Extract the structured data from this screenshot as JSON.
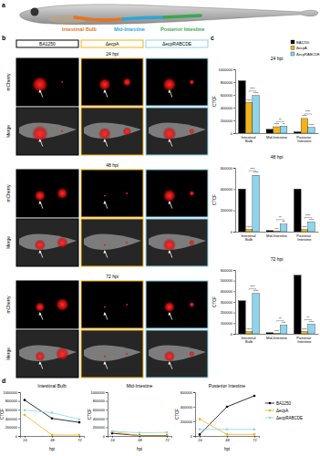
{
  "figure": {
    "panel_labels": [
      "a",
      "b",
      "c",
      "d"
    ],
    "fish": {
      "regions": [
        {
          "label": "Intestinal Bulb",
          "color": "#e8731e"
        },
        {
          "label": "Mid-Intestine",
          "color": "#2aa7d8"
        },
        {
          "label": "Posterior Intestine",
          "color": "#3aa655"
        }
      ]
    },
    "images": {
      "columns": [
        {
          "label": "BA1250",
          "color": "#000000"
        },
        {
          "label": "ΔecpA",
          "color": "#f2b21b"
        },
        {
          "label": "ΔecpRABCDE",
          "color": "#8ed4ea"
        }
      ],
      "rows": [
        "24 hpi",
        "48 hpi",
        "72 hpi"
      ],
      "channels": [
        "mCherry",
        "Merge"
      ]
    }
  },
  "chart_data": [
    {
      "type": "bar",
      "title": "24 hpi",
      "ylabel": "CTCF",
      "categories": [
        "Intestinal Bulb",
        "Mid-Intestine",
        "Posterior Intestine"
      ],
      "series": [
        {
          "name": "BA1250",
          "color": "#000000",
          "values": [
            820000,
            60000,
            20000
          ]
        },
        {
          "name": "ΔecpA",
          "color": "#f2b21b",
          "values": [
            480000,
            100000,
            230000
          ],
          "significance": [
            "****",
            "****",
            "****"
          ]
        },
        {
          "name": "ΔecpRABCDE",
          "color": "#8ed4ea",
          "values": [
            590000,
            110000,
            90000
          ],
          "significance": [
            "****",
            "**",
            "****"
          ]
        }
      ],
      "pair_significance": [
        "****",
        "**",
        "****"
      ],
      "ylim": [
        0,
        1000000
      ],
      "yticks": [
        0,
        200000,
        400000,
        600000,
        800000,
        1000000
      ],
      "legend": "top-right"
    },
    {
      "type": "bar",
      "title": "48 hpi",
      "ylabel": "CTCF",
      "categories": [
        "Intestinal Bulb",
        "Mid-Intestine",
        "Posterior Intestine"
      ],
      "series": [
        {
          "name": "BA1250",
          "color": "#000000",
          "values": [
            400000,
            10000,
            400000
          ]
        },
        {
          "name": "ΔecpA",
          "color": "#f2b21b",
          "values": [
            20000,
            5000,
            20000
          ],
          "significance": [
            "****",
            "***",
            "****"
          ]
        },
        {
          "name": "ΔecpRABCDE",
          "color": "#8ed4ea",
          "values": [
            530000,
            70000,
            90000
          ],
          "significance": [
            "****",
            "**",
            "****"
          ]
        }
      ],
      "pair_significance": [
        "****",
        "**",
        "****"
      ],
      "ylim": [
        0,
        600000
      ],
      "yticks": [
        0,
        200000,
        400000,
        600000
      ]
    },
    {
      "type": "bar",
      "title": "72 hpi",
      "ylabel": "CTCF",
      "categories": [
        "Intestinal Bulb",
        "Mid-Intestine",
        "Posterior Intestine"
      ],
      "series": [
        {
          "name": "BA1250",
          "color": "#000000",
          "values": [
            310000,
            10000,
            550000
          ]
        },
        {
          "name": "ΔecpA",
          "color": "#f2b21b",
          "values": [
            20000,
            5000,
            20000
          ],
          "significance": [
            "****",
            "****",
            "****"
          ]
        },
        {
          "name": "ΔecpRABCDE",
          "color": "#8ed4ea",
          "values": [
            380000,
            80000,
            90000
          ],
          "significance": [
            "****",
            "***",
            "****"
          ]
        }
      ],
      "pair_significance": [
        "****",
        "**",
        "**"
      ],
      "ylim": [
        0,
        600000
      ],
      "yticks": [
        0,
        100000,
        200000,
        300000,
        400000,
        500000,
        600000
      ]
    },
    {
      "type": "line",
      "title": "Intestinal Bulb",
      "xlabel": "hpi",
      "ylabel": "CTCF",
      "x": [
        24,
        48,
        72
      ],
      "series": [
        {
          "name": "BA1250",
          "color": "#000000",
          "values": [
            820000,
            400000,
            310000
          ]
        },
        {
          "name": "ΔecpA",
          "color": "#f2b21b",
          "values": [
            480000,
            20000,
            20000
          ]
        },
        {
          "name": "ΔecpRABCDE",
          "color": "#8ed4ea",
          "values": [
            590000,
            530000,
            380000
          ]
        }
      ],
      "xlim": [
        20,
        76
      ],
      "xticks": [
        24,
        48,
        72
      ],
      "ylim": [
        0,
        1000000
      ],
      "yticks": [
        0,
        200000,
        400000,
        600000,
        800000,
        1000000
      ],
      "marker": "circle"
    },
    {
      "type": "line",
      "title": "Mid-Intestine",
      "xlabel": "hpi",
      "ylabel": "CTCF",
      "x": [
        24,
        48,
        72
      ],
      "series": [
        {
          "name": "BA1250",
          "color": "#000000",
          "values": [
            60000,
            10000,
            10000
          ]
        },
        {
          "name": "ΔecpA",
          "color": "#f2b21b",
          "values": [
            100000,
            5000,
            5000
          ]
        },
        {
          "name": "ΔecpRABCDE",
          "color": "#8ed4ea",
          "values": [
            110000,
            70000,
            80000
          ]
        }
      ],
      "xlim": [
        20,
        76
      ],
      "xticks": [
        24,
        48,
        72
      ],
      "ylim": [
        0,
        1000000
      ],
      "yticks": [
        0,
        200000,
        400000,
        600000,
        800000,
        1000000
      ],
      "marker": "circle"
    },
    {
      "type": "line",
      "title": "Posterior Intestine",
      "xlabel": "hpi",
      "ylabel": "CTCF",
      "x": [
        24,
        48,
        72
      ],
      "series": [
        {
          "name": "BA1250",
          "color": "#000000",
          "values": [
            20000,
            400000,
            550000
          ]
        },
        {
          "name": "ΔecpA",
          "color": "#f2b21b",
          "values": [
            230000,
            20000,
            20000
          ]
        },
        {
          "name": "ΔecpRABCDE",
          "color": "#8ed4ea",
          "values": [
            90000,
            90000,
            90000
          ]
        }
      ],
      "xlim": [
        20,
        76
      ],
      "xticks": [
        24,
        48,
        72
      ],
      "ylim": [
        0,
        600000
      ],
      "yticks": [
        0,
        200000,
        400000,
        600000
      ],
      "marker": "circle",
      "legend": "right"
    }
  ]
}
